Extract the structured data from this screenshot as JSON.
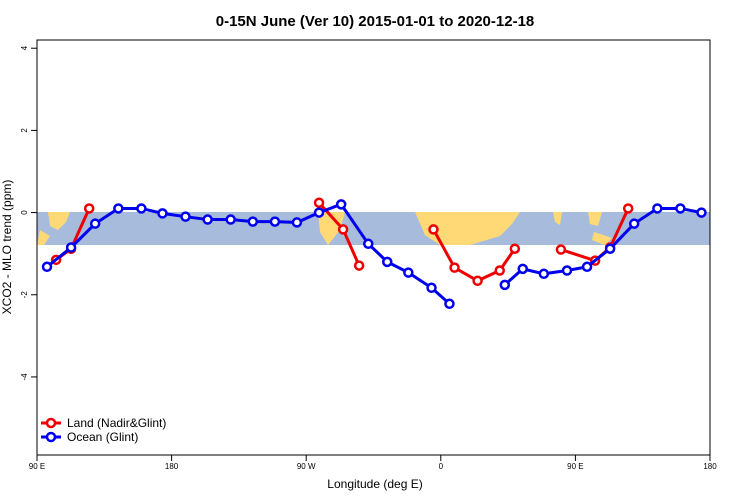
{
  "chart_data": {
    "type": "line",
    "title": "0-15N June (Ver 10)   2015-01-01 to 2020-12-18",
    "x_label": "Longitude (deg E)",
    "y_label": "XCO2 - MLO trend (ppm)",
    "xlim": [
      90,
      540
    ],
    "ylim": [
      -5.9,
      4.2
    ],
    "xticks": [
      {
        "value": 90,
        "label": "90 E"
      },
      {
        "value": 180,
        "label": "180"
      },
      {
        "value": 270,
        "label": "90 W"
      },
      {
        "value": 360,
        "label": "0"
      },
      {
        "value": 450,
        "label": "90 E"
      },
      {
        "value": 540,
        "label": "180"
      }
    ],
    "yticks": [
      -4,
      -2,
      0,
      2,
      4
    ],
    "legend": "bottom-left",
    "series": [
      {
        "name": "Land (Nadir&Glint)",
        "color": "#ee0000",
        "x": [
          102.8,
          112.8,
          124.9,
          null,
          278.6,
          294.7,
          305.4,
          null,
          355.1,
          369.2,
          384.6,
          399.4,
          409.5,
          null,
          440.3,
          463.2,
          473.2,
          485.3
        ],
        "values": [
          -1.15,
          -0.88,
          0.1,
          null,
          0.24,
          -0.41,
          -1.29,
          null,
          -0.41,
          -1.34,
          -1.66,
          -1.41,
          -0.88,
          null,
          -0.9,
          -1.17,
          -0.85,
          0.1
        ]
      },
      {
        "name": "Ocean (Glint)",
        "color": "#0000ee",
        "x": [
          96.7,
          112.8,
          128.9,
          144.4,
          159.8,
          173.9,
          189.3,
          204.1,
          219.5,
          234.3,
          249.1,
          263.8,
          278.6,
          293.4,
          311.5,
          324.2,
          338.3,
          353.8,
          365.8,
          null,
          402.8,
          414.8,
          428.9,
          444.4,
          457.8,
          473.2,
          489.3,
          504.8,
          520.2,
          534.3
        ],
        "values": [
          -1.32,
          -0.85,
          -0.27,
          0.1,
          0.1,
          -0.02,
          -0.1,
          -0.17,
          -0.17,
          -0.22,
          -0.22,
          -0.24,
          0,
          0.2,
          -0.76,
          -1.2,
          -1.46,
          -1.83,
          -2.22,
          null,
          -1.76,
          -1.37,
          -1.49,
          -1.41,
          -1.32,
          -0.88,
          -0.27,
          0.1,
          0.1,
          0
        ]
      }
    ]
  }
}
